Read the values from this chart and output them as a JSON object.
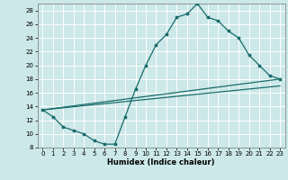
{
  "xlabel": "Humidex (Indice chaleur)",
  "xlim": [
    -0.5,
    23.5
  ],
  "ylim": [
    8,
    29
  ],
  "yticks": [
    8,
    10,
    12,
    14,
    16,
    18,
    20,
    22,
    24,
    26,
    28
  ],
  "xticks": [
    0,
    1,
    2,
    3,
    4,
    5,
    6,
    7,
    8,
    9,
    10,
    11,
    12,
    13,
    14,
    15,
    16,
    17,
    18,
    19,
    20,
    21,
    22,
    23
  ],
  "bg_color": "#cce8e8",
  "line_color": "#1a6b6b",
  "grid_color": "#ffffff",
  "line1_x": [
    0,
    1,
    2,
    3,
    4,
    5,
    6,
    7,
    8,
    9,
    10,
    11,
    12,
    13,
    14,
    15,
    16,
    17,
    18,
    19,
    20,
    21,
    22,
    23
  ],
  "line1_y": [
    13.5,
    12.5,
    11,
    10.5,
    10,
    9,
    8.5,
    8.5,
    12.5,
    16.5,
    20,
    23,
    24.5,
    27,
    27.5,
    29,
    27,
    26.5,
    25,
    24,
    21.5,
    20,
    18.5,
    18
  ],
  "line2_x": [
    0,
    23
  ],
  "line2_y": [
    13.5,
    18
  ],
  "line3_x": [
    0,
    23
  ],
  "line3_y": [
    13.5,
    17
  ]
}
